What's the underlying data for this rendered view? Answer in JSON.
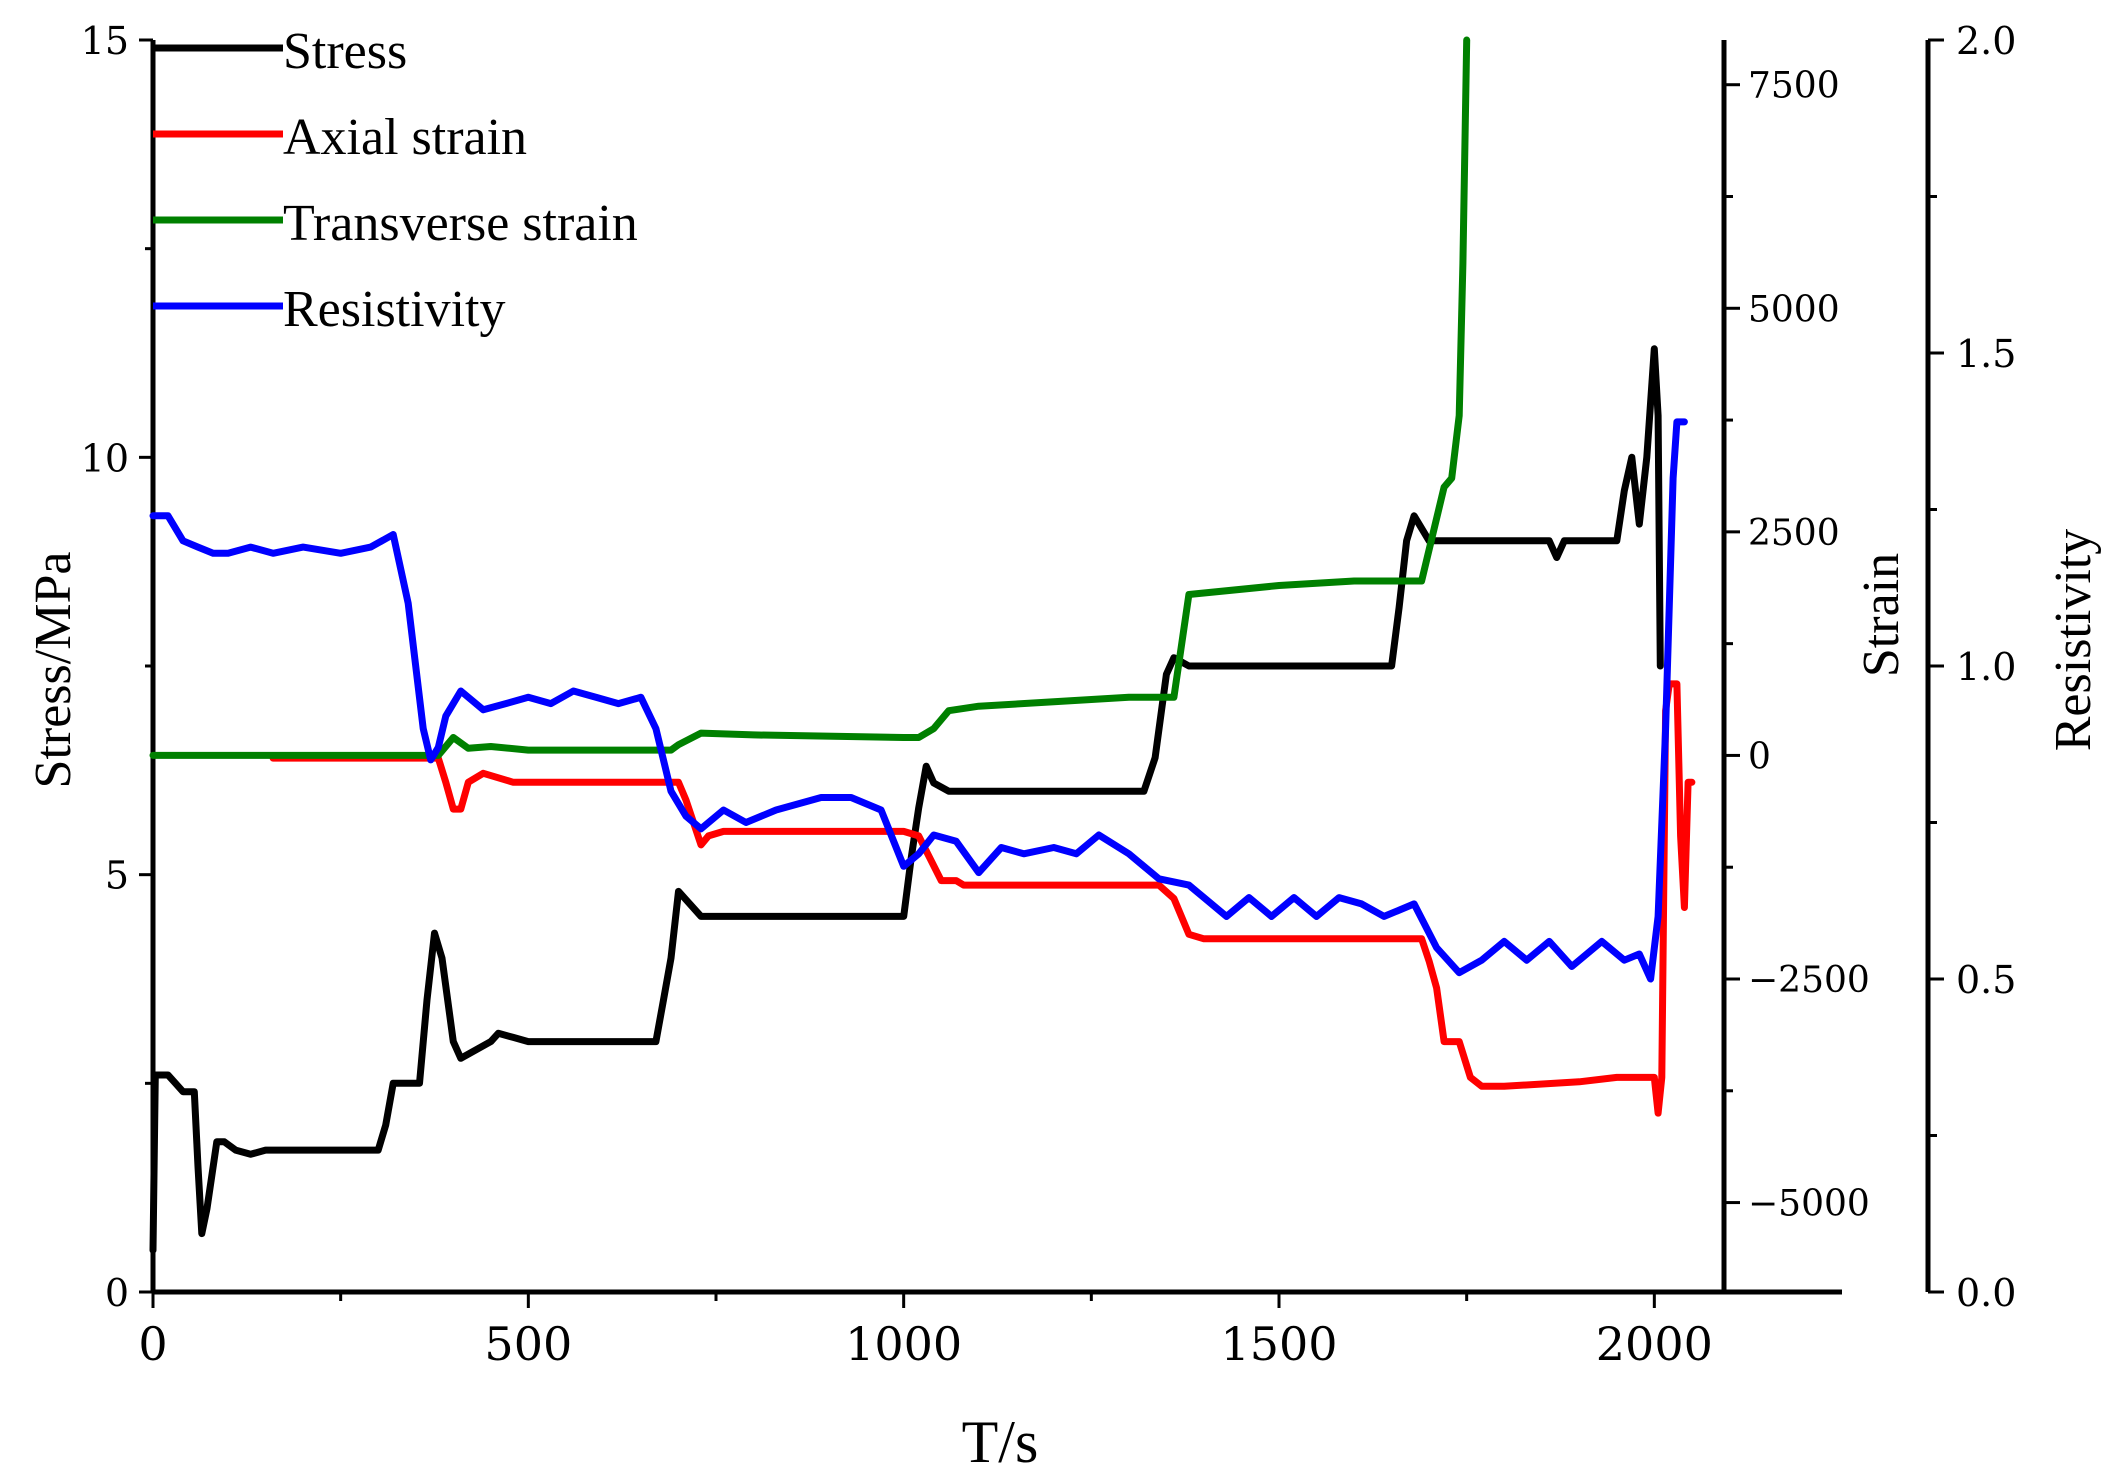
{
  "chart_data": {
    "type": "line",
    "xlabel": "T/s",
    "xlim": [
      0,
      2250
    ],
    "xticks": [
      0,
      500,
      1000,
      1500,
      2000
    ],
    "axes": {
      "stress": {
        "label": "Stress/MPa",
        "lim": [
          0,
          15
        ],
        "ticks": [
          0,
          5,
          10,
          15
        ]
      },
      "strain": {
        "label": "Strain",
        "lim": [
          -6000,
          8000
        ],
        "ticks": [
          -5000,
          -2500,
          0,
          2500,
          5000,
          7500
        ]
      },
      "resistivity": {
        "label": "Resistivity",
        "lim": [
          0,
          2
        ],
        "ticks": [
          "0.0",
          "0.5",
          "1.0",
          "1.5",
          "2.0"
        ]
      }
    },
    "legend_position": "top-left",
    "series": [
      {
        "name": "Stress",
        "axis": "stress",
        "color": "#000000",
        "points": [
          [
            0,
            0.5
          ],
          [
            3,
            2.6
          ],
          [
            20,
            2.6
          ],
          [
            30,
            2.5
          ],
          [
            40,
            2.4
          ],
          [
            55,
            2.4
          ],
          [
            60,
            1.5
          ],
          [
            65,
            0.7
          ],
          [
            72,
            1
          ],
          [
            85,
            1.8
          ],
          [
            95,
            1.8
          ],
          [
            110,
            1.7
          ],
          [
            130,
            1.65
          ],
          [
            150,
            1.7
          ],
          [
            200,
            1.7
          ],
          [
            270,
            1.7
          ],
          [
            300,
            1.7
          ],
          [
            310,
            2
          ],
          [
            320,
            2.5
          ],
          [
            340,
            2.5
          ],
          [
            355,
            2.5
          ],
          [
            365,
            3.5
          ],
          [
            375,
            4.3
          ],
          [
            385,
            4
          ],
          [
            400,
            3
          ],
          [
            410,
            2.8
          ],
          [
            430,
            2.9
          ],
          [
            450,
            3
          ],
          [
            460,
            3.1
          ],
          [
            480,
            3.05
          ],
          [
            500,
            3
          ],
          [
            550,
            3
          ],
          [
            670,
            3
          ],
          [
            680,
            3.5
          ],
          [
            690,
            4
          ],
          [
            700,
            4.8
          ],
          [
            710,
            4.7
          ],
          [
            730,
            4.5
          ],
          [
            750,
            4.5
          ],
          [
            800,
            4.5
          ],
          [
            1000,
            4.5
          ],
          [
            1010,
            5.2
          ],
          [
            1020,
            5.8
          ],
          [
            1030,
            6.3
          ],
          [
            1040,
            6.1
          ],
          [
            1060,
            6
          ],
          [
            1100,
            6
          ],
          [
            1200,
            6
          ],
          [
            1320,
            6
          ],
          [
            1335,
            6.4
          ],
          [
            1350,
            7.4
          ],
          [
            1360,
            7.6
          ],
          [
            1380,
            7.5
          ],
          [
            1500,
            7.5
          ],
          [
            1650,
            7.5
          ],
          [
            1660,
            8.2
          ],
          [
            1670,
            9
          ],
          [
            1680,
            9.3
          ],
          [
            1700,
            9
          ],
          [
            1720,
            9
          ],
          [
            1860,
            9
          ],
          [
            1870,
            8.8
          ],
          [
            1880,
            9
          ],
          [
            1950,
            9
          ],
          [
            1960,
            9.6
          ],
          [
            1970,
            10
          ],
          [
            1980,
            9.2
          ],
          [
            1990,
            10
          ],
          [
            2000,
            11.3
          ],
          [
            2005,
            10.5
          ],
          [
            2008,
            7.5
          ]
        ]
      },
      {
        "name": "Axial strain",
        "axis": "strain",
        "color": "#ff0000",
        "points": [
          [
            160,
            -30
          ],
          [
            300,
            -30
          ],
          [
            380,
            -30
          ],
          [
            390,
            -300
          ],
          [
            400,
            -600
          ],
          [
            410,
            -600
          ],
          [
            420,
            -300
          ],
          [
            440,
            -200
          ],
          [
            480,
            -300
          ],
          [
            510,
            -300
          ],
          [
            600,
            -300
          ],
          [
            700,
            -300
          ],
          [
            710,
            -500
          ],
          [
            730,
            -1000
          ],
          [
            740,
            -900
          ],
          [
            760,
            -850
          ],
          [
            800,
            -850
          ],
          [
            1000,
            -850
          ],
          [
            1020,
            -900
          ],
          [
            1050,
            -1400
          ],
          [
            1070,
            -1400
          ],
          [
            1080,
            -1450
          ],
          [
            1150,
            -1450
          ],
          [
            1300,
            -1450
          ],
          [
            1340,
            -1450
          ],
          [
            1360,
            -1600
          ],
          [
            1380,
            -2000
          ],
          [
            1400,
            -2050
          ],
          [
            1500,
            -2050
          ],
          [
            1650,
            -2050
          ],
          [
            1690,
            -2050
          ],
          [
            1700,
            -2300
          ],
          [
            1710,
            -2600
          ],
          [
            1720,
            -3200
          ],
          [
            1740,
            -3200
          ],
          [
            1755,
            -3600
          ],
          [
            1770,
            -3700
          ],
          [
            1800,
            -3700
          ],
          [
            1900,
            -3650
          ],
          [
            1950,
            -3600
          ],
          [
            2000,
            -3600
          ],
          [
            2005,
            -4000
          ],
          [
            2010,
            -3600
          ],
          [
            2015,
            500
          ],
          [
            2020,
            800
          ],
          [
            2030,
            800
          ],
          [
            2035,
            -900
          ],
          [
            2040,
            -1700
          ],
          [
            2045,
            -300
          ],
          [
            2050,
            -300
          ]
        ]
      },
      {
        "name": "Transverse strain",
        "axis": "strain",
        "color": "#008000",
        "points": [
          [
            0,
            0
          ],
          [
            100,
            0
          ],
          [
            300,
            0
          ],
          [
            380,
            0
          ],
          [
            400,
            200
          ],
          [
            420,
            80
          ],
          [
            450,
            100
          ],
          [
            500,
            60
          ],
          [
            600,
            60
          ],
          [
            690,
            60
          ],
          [
            700,
            120
          ],
          [
            730,
            250
          ],
          [
            800,
            230
          ],
          [
            1000,
            200
          ],
          [
            1020,
            200
          ],
          [
            1040,
            300
          ],
          [
            1060,
            500
          ],
          [
            1100,
            550
          ],
          [
            1200,
            600
          ],
          [
            1300,
            650
          ],
          [
            1360,
            650
          ],
          [
            1380,
            1800
          ],
          [
            1500,
            1900
          ],
          [
            1600,
            1950
          ],
          [
            1690,
            1950
          ],
          [
            1700,
            2300
          ],
          [
            1720,
            3000
          ],
          [
            1730,
            3100
          ],
          [
            1740,
            3800
          ],
          [
            1745,
            5500
          ],
          [
            1750,
            8000
          ]
        ]
      },
      {
        "name": "Resistivity",
        "axis": "resistivity",
        "color": "#0000ff",
        "points": [
          [
            0,
            1.24
          ],
          [
            20,
            1.24
          ],
          [
            40,
            1.2
          ],
          [
            60,
            1.19
          ],
          [
            80,
            1.18
          ],
          [
            100,
            1.18
          ],
          [
            130,
            1.19
          ],
          [
            160,
            1.18
          ],
          [
            200,
            1.19
          ],
          [
            250,
            1.18
          ],
          [
            290,
            1.19
          ],
          [
            320,
            1.21
          ],
          [
            340,
            1.1
          ],
          [
            350,
            1
          ],
          [
            360,
            0.9
          ],
          [
            370,
            0.85
          ],
          [
            380,
            0.87
          ],
          [
            390,
            0.92
          ],
          [
            410,
            0.96
          ],
          [
            440,
            0.93
          ],
          [
            470,
            0.94
          ],
          [
            500,
            0.95
          ],
          [
            530,
            0.94
          ],
          [
            560,
            0.96
          ],
          [
            590,
            0.95
          ],
          [
            620,
            0.94
          ],
          [
            650,
            0.95
          ],
          [
            670,
            0.9
          ],
          [
            690,
            0.8
          ],
          [
            710,
            0.76
          ],
          [
            730,
            0.74
          ],
          [
            760,
            0.77
          ],
          [
            790,
            0.75
          ],
          [
            830,
            0.77
          ],
          [
            860,
            0.78
          ],
          [
            890,
            0.79
          ],
          [
            930,
            0.79
          ],
          [
            970,
            0.77
          ],
          [
            1000,
            0.68
          ],
          [
            1020,
            0.7
          ],
          [
            1040,
            0.73
          ],
          [
            1070,
            0.72
          ],
          [
            1100,
            0.67
          ],
          [
            1130,
            0.71
          ],
          [
            1160,
            0.7
          ],
          [
            1200,
            0.71
          ],
          [
            1230,
            0.7
          ],
          [
            1260,
            0.73
          ],
          [
            1300,
            0.7
          ],
          [
            1340,
            0.66
          ],
          [
            1380,
            0.65
          ],
          [
            1400,
            0.63
          ],
          [
            1430,
            0.6
          ],
          [
            1460,
            0.63
          ],
          [
            1490,
            0.6
          ],
          [
            1520,
            0.63
          ],
          [
            1550,
            0.6
          ],
          [
            1580,
            0.63
          ],
          [
            1610,
            0.62
          ],
          [
            1640,
            0.6
          ],
          [
            1680,
            0.62
          ],
          [
            1710,
            0.55
          ],
          [
            1740,
            0.51
          ],
          [
            1770,
            0.53
          ],
          [
            1800,
            0.56
          ],
          [
            1830,
            0.53
          ],
          [
            1860,
            0.56
          ],
          [
            1890,
            0.52
          ],
          [
            1930,
            0.56
          ],
          [
            1960,
            0.53
          ],
          [
            1980,
            0.54
          ],
          [
            1995,
            0.5
          ],
          [
            2005,
            0.6
          ],
          [
            2015,
            0.9
          ],
          [
            2025,
            1.3
          ],
          [
            2030,
            1.39
          ],
          [
            2040,
            1.39
          ]
        ]
      }
    ]
  }
}
